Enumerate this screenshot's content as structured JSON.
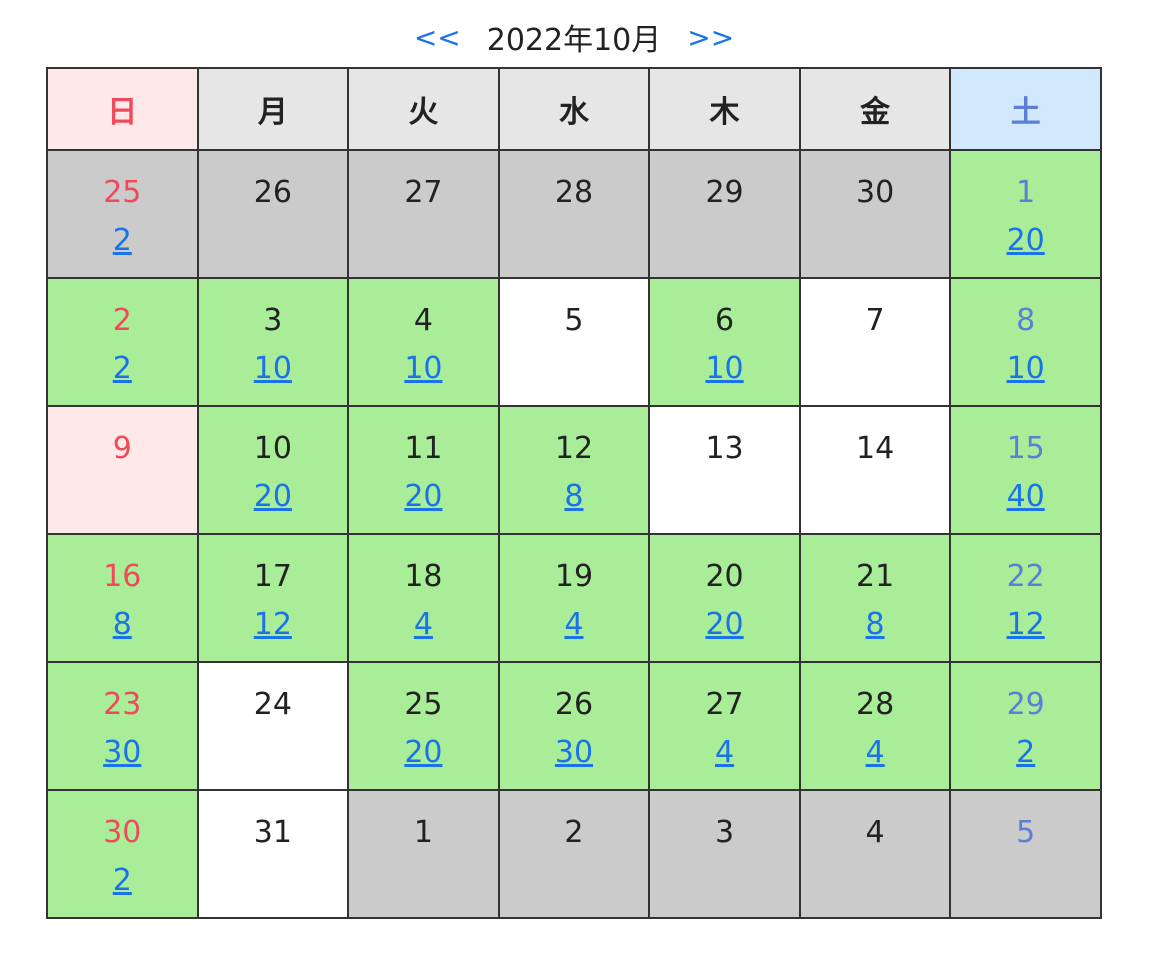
{
  "nav": {
    "prev_label": "<<",
    "month_label": "2022年10月",
    "next_label": ">>"
  },
  "weekdays": [
    "日",
    "月",
    "火",
    "水",
    "木",
    "金",
    "土"
  ],
  "colors": {
    "available": "#aaed98",
    "outside_month": "#cbcbcb",
    "sunday_text": "#ee4b5a",
    "saturday_text": "#5b7fd6",
    "link": "#1a73e8"
  },
  "weeks": [
    [
      {
        "day": "25",
        "count": "2",
        "state": "outside"
      },
      {
        "day": "26",
        "count": "",
        "state": "outside"
      },
      {
        "day": "27",
        "count": "",
        "state": "outside"
      },
      {
        "day": "28",
        "count": "",
        "state": "outside"
      },
      {
        "day": "29",
        "count": "",
        "state": "outside"
      },
      {
        "day": "30",
        "count": "",
        "state": "outside"
      },
      {
        "day": "1",
        "count": "20",
        "state": "avail"
      }
    ],
    [
      {
        "day": "2",
        "count": "2",
        "state": "avail"
      },
      {
        "day": "3",
        "count": "10",
        "state": "avail"
      },
      {
        "day": "4",
        "count": "10",
        "state": "avail"
      },
      {
        "day": "5",
        "count": "",
        "state": "empty"
      },
      {
        "day": "6",
        "count": "10",
        "state": "avail"
      },
      {
        "day": "7",
        "count": "",
        "state": "empty"
      },
      {
        "day": "8",
        "count": "10",
        "state": "avail"
      }
    ],
    [
      {
        "day": "9",
        "count": "",
        "state": "holiday"
      },
      {
        "day": "10",
        "count": "20",
        "state": "avail"
      },
      {
        "day": "11",
        "count": "20",
        "state": "avail"
      },
      {
        "day": "12",
        "count": "8",
        "state": "avail"
      },
      {
        "day": "13",
        "count": "",
        "state": "empty"
      },
      {
        "day": "14",
        "count": "",
        "state": "empty"
      },
      {
        "day": "15",
        "count": "40",
        "state": "avail"
      }
    ],
    [
      {
        "day": "16",
        "count": "8",
        "state": "avail"
      },
      {
        "day": "17",
        "count": "12",
        "state": "avail"
      },
      {
        "day": "18",
        "count": "4",
        "state": "avail"
      },
      {
        "day": "19",
        "count": "4",
        "state": "avail"
      },
      {
        "day": "20",
        "count": "20",
        "state": "avail"
      },
      {
        "day": "21",
        "count": "8",
        "state": "avail"
      },
      {
        "day": "22",
        "count": "12",
        "state": "avail"
      }
    ],
    [
      {
        "day": "23",
        "count": "30",
        "state": "avail"
      },
      {
        "day": "24",
        "count": "",
        "state": "empty"
      },
      {
        "day": "25",
        "count": "20",
        "state": "avail"
      },
      {
        "day": "26",
        "count": "30",
        "state": "avail"
      },
      {
        "day": "27",
        "count": "4",
        "state": "avail"
      },
      {
        "day": "28",
        "count": "4",
        "state": "avail"
      },
      {
        "day": "29",
        "count": "2",
        "state": "avail"
      }
    ],
    [
      {
        "day": "30",
        "count": "2",
        "state": "avail"
      },
      {
        "day": "31",
        "count": "",
        "state": "empty"
      },
      {
        "day": "1",
        "count": "",
        "state": "outside"
      },
      {
        "day": "2",
        "count": "",
        "state": "outside"
      },
      {
        "day": "3",
        "count": "",
        "state": "outside"
      },
      {
        "day": "4",
        "count": "",
        "state": "outside"
      },
      {
        "day": "5",
        "count": "",
        "state": "outside"
      }
    ]
  ]
}
